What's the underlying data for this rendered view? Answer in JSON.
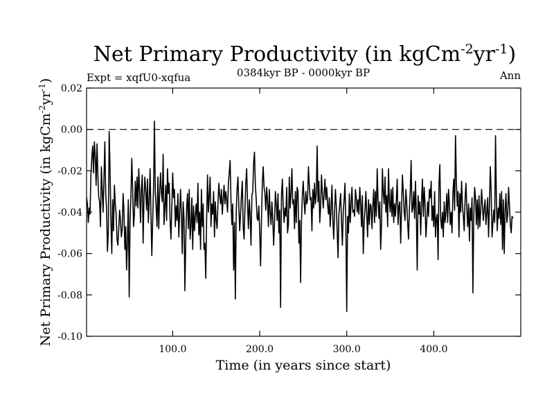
{
  "chart_data": {
    "type": "line",
    "title_main": "Net Primary Productivity (in kgCm",
    "title_sup1": "-2",
    "title_mid": "yr",
    "title_sup2": "-1",
    "title_end": ")",
    "expt_label": "Expt = xqfU0-xqfua",
    "period_label": "0384kyr BP - 0000kyr BP",
    "season_label": "Ann",
    "xlabel": "Time (in years since start)",
    "ylabel_main": "Net Primary Productivity (in kgCm",
    "ylabel_sup1": "-2",
    "ylabel_mid": "yr",
    "ylabel_sup2": "-1",
    "ylabel_end": ")",
    "xlim": [
      1,
      500
    ],
    "ylim": [
      -0.1,
      0.02
    ],
    "x_ticks": [
      {
        "value": 100,
        "label": "100.0"
      },
      {
        "value": 200,
        "label": "200.0"
      },
      {
        "value": 300,
        "label": "300.0"
      },
      {
        "value": 400,
        "label": "400.0"
      }
    ],
    "y_ticks": [
      {
        "value": 0.02,
        "label": "0.02"
      },
      {
        "value": 0.0,
        "label": "0.00"
      },
      {
        "value": -0.02,
        "label": "-0.02"
      },
      {
        "value": -0.04,
        "label": "-0.04"
      },
      {
        "value": -0.06,
        "label": "-0.06"
      },
      {
        "value": -0.08,
        "label": "-0.08"
      },
      {
        "value": -0.1,
        "label": "-0.10"
      }
    ],
    "reference_line": 0.0,
    "series": [
      {
        "name": "xqfU0-xqfua",
        "x_start": 1,
        "x_step": 1,
        "values": [
          -0.033,
          -0.036,
          -0.045,
          -0.038,
          -0.041,
          -0.022,
          -0.014,
          -0.008,
          -0.021,
          -0.006,
          -0.013,
          -0.027,
          -0.007,
          -0.022,
          -0.033,
          -0.035,
          -0.047,
          -0.018,
          -0.029,
          -0.04,
          -0.024,
          -0.006,
          -0.031,
          -0.038,
          -0.059,
          -0.05,
          -0.001,
          -0.019,
          -0.044,
          -0.06,
          -0.034,
          -0.049,
          -0.027,
          -0.036,
          -0.041,
          -0.053,
          -0.056,
          -0.048,
          -0.039,
          -0.044,
          -0.052,
          -0.048,
          -0.031,
          -0.04,
          -0.058,
          -0.047,
          -0.068,
          -0.054,
          -0.034,
          -0.081,
          -0.044,
          -0.032,
          -0.014,
          -0.029,
          -0.047,
          -0.041,
          -0.025,
          -0.037,
          -0.023,
          -0.038,
          -0.019,
          -0.03,
          -0.045,
          -0.029,
          -0.022,
          -0.055,
          -0.033,
          -0.023,
          -0.03,
          -0.039,
          -0.024,
          -0.045,
          -0.035,
          -0.019,
          -0.041,
          -0.061,
          -0.044,
          -0.028,
          0.004,
          -0.03,
          -0.038,
          -0.047,
          -0.023,
          -0.048,
          -0.03,
          -0.021,
          -0.031,
          -0.035,
          -0.012,
          -0.046,
          -0.038,
          -0.027,
          -0.044,
          -0.019,
          -0.031,
          -0.026,
          -0.044,
          -0.053,
          -0.037,
          -0.021,
          -0.033,
          -0.029,
          -0.047,
          -0.037,
          -0.044,
          -0.031,
          -0.052,
          -0.04,
          -0.029,
          -0.041,
          -0.06,
          -0.035,
          -0.043,
          -0.078,
          -0.054,
          -0.038,
          -0.031,
          -0.048,
          -0.029,
          -0.053,
          -0.047,
          -0.033,
          -0.058,
          -0.037,
          -0.049,
          -0.042,
          -0.036,
          -0.045,
          -0.026,
          -0.051,
          -0.04,
          -0.058,
          -0.029,
          -0.047,
          -0.036,
          -0.058,
          -0.055,
          -0.072,
          -0.043,
          -0.022,
          -0.04,
          -0.032,
          -0.023,
          -0.047,
          -0.036,
          -0.041,
          -0.03,
          -0.052,
          -0.035,
          -0.044,
          -0.048,
          -0.036,
          -0.026,
          -0.032,
          -0.036,
          -0.029,
          -0.041,
          -0.034,
          -0.027,
          -0.036,
          -0.03,
          -0.034,
          -0.04,
          -0.026,
          -0.021,
          -0.015,
          -0.035,
          -0.046,
          -0.036,
          -0.068,
          -0.045,
          -0.082,
          -0.04,
          -0.029,
          -0.023,
          -0.037,
          -0.049,
          -0.041,
          -0.032,
          -0.025,
          -0.047,
          -0.053,
          -0.039,
          -0.026,
          -0.019,
          -0.036,
          -0.048,
          -0.034,
          -0.042,
          -0.056,
          -0.032,
          -0.03,
          -0.016,
          -0.011,
          -0.027,
          -0.034,
          -0.043,
          -0.044,
          -0.037,
          -0.05,
          -0.066,
          -0.044,
          -0.026,
          -0.018,
          -0.028,
          -0.031,
          -0.039,
          -0.028,
          -0.035,
          -0.047,
          -0.029,
          -0.04,
          -0.046,
          -0.035,
          -0.043,
          -0.056,
          -0.045,
          -0.03,
          -0.036,
          -0.044,
          -0.031,
          -0.05,
          -0.039,
          -0.086,
          -0.032,
          -0.024,
          -0.037,
          -0.045,
          -0.038,
          -0.042,
          -0.028,
          -0.05,
          -0.046,
          -0.023,
          -0.038,
          -0.031,
          -0.019,
          -0.036,
          -0.034,
          -0.048,
          -0.03,
          -0.045,
          -0.028,
          -0.03,
          -0.055,
          -0.044,
          -0.074,
          -0.044,
          -0.032,
          -0.025,
          -0.035,
          -0.041,
          -0.03,
          -0.036,
          -0.034,
          -0.018,
          -0.027,
          -0.034,
          -0.033,
          -0.049,
          -0.029,
          -0.038,
          -0.026,
          -0.036,
          -0.031,
          -0.008,
          -0.035,
          -0.025,
          -0.045,
          -0.037,
          -0.022,
          -0.031,
          -0.038,
          -0.031,
          -0.024,
          -0.034,
          -0.028,
          -0.036,
          -0.041,
          -0.033,
          -0.047,
          -0.039,
          -0.027,
          -0.043,
          -0.053,
          -0.04,
          -0.029,
          -0.037,
          -0.049,
          -0.062,
          -0.041,
          -0.036,
          -0.031,
          -0.045,
          -0.056,
          -0.04,
          -0.034,
          -0.026,
          -0.046,
          -0.088,
          -0.042,
          -0.05,
          -0.031,
          -0.045,
          -0.036,
          -0.028,
          -0.04,
          -0.039,
          -0.042,
          -0.029,
          -0.033,
          -0.04,
          -0.034,
          -0.041,
          -0.028,
          -0.036,
          -0.047,
          -0.032,
          -0.06,
          -0.045,
          -0.039,
          -0.03,
          -0.041,
          -0.052,
          -0.034,
          -0.046,
          -0.036,
          -0.037,
          -0.048,
          -0.037,
          -0.029,
          -0.045,
          -0.03,
          -0.042,
          -0.019,
          -0.034,
          -0.043,
          -0.035,
          -0.058,
          -0.046,
          -0.019,
          -0.03,
          -0.036,
          -0.023,
          -0.04,
          -0.032,
          -0.047,
          -0.019,
          -0.035,
          -0.04,
          -0.029,
          -0.042,
          -0.028,
          -0.045,
          -0.036,
          -0.042,
          -0.034,
          -0.024,
          -0.046,
          -0.037,
          -0.035,
          -0.055,
          -0.039,
          -0.022,
          -0.03,
          -0.04,
          -0.044,
          -0.029,
          -0.036,
          -0.045,
          -0.053,
          -0.039,
          -0.03,
          -0.015,
          -0.04,
          -0.038,
          -0.03,
          -0.043,
          -0.025,
          -0.041,
          -0.068,
          -0.032,
          -0.041,
          -0.035,
          -0.051,
          -0.035,
          -0.024,
          -0.042,
          -0.028,
          -0.036,
          -0.052,
          -0.044,
          -0.035,
          -0.042,
          -0.029,
          -0.033,
          -0.025,
          -0.044,
          -0.037,
          -0.047,
          -0.03,
          -0.052,
          -0.043,
          -0.041,
          -0.063,
          -0.026,
          -0.017,
          -0.043,
          -0.048,
          -0.04,
          -0.052,
          -0.035,
          -0.045,
          -0.04,
          -0.031,
          -0.045,
          -0.029,
          -0.036,
          -0.046,
          -0.04,
          -0.05,
          -0.031,
          -0.024,
          -0.039,
          -0.003,
          -0.025,
          -0.037,
          -0.03,
          -0.052,
          -0.031,
          -0.04,
          -0.025,
          -0.037,
          -0.042,
          -0.049,
          -0.034,
          -0.026,
          -0.038,
          -0.047,
          -0.036,
          -0.054,
          -0.038,
          -0.044,
          -0.033,
          -0.079,
          -0.042,
          -0.028,
          -0.033,
          -0.046,
          -0.034,
          -0.048,
          -0.032,
          -0.047,
          -0.039,
          -0.029,
          -0.037,
          -0.044,
          -0.038,
          -0.034,
          -0.046,
          -0.04,
          -0.033,
          -0.052,
          -0.037,
          -0.018,
          -0.03,
          -0.052,
          -0.045,
          -0.039,
          -0.045,
          -0.003,
          -0.034,
          -0.049,
          -0.038,
          -0.043,
          -0.031,
          -0.046,
          -0.03,
          -0.058,
          -0.034,
          -0.06,
          -0.039,
          -0.031,
          -0.045,
          -0.041,
          -0.028,
          -0.037,
          -0.046,
          -0.05,
          -0.042,
          -0.043
        ]
      }
    ]
  }
}
